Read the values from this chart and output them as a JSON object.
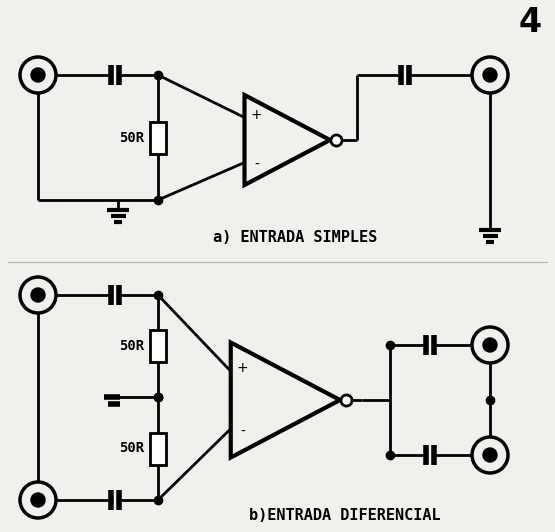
{
  "bg_color": "#f0f0ec",
  "line_color": "black",
  "lw": 2.0,
  "lw_thick": 4.0,
  "figure_number": "4",
  "label_a": "a) ENTRADA SIMPLES",
  "label_b": "b)ENTRADA DIFERENCIAL",
  "resistor_label": "50R",
  "fs_label": 11,
  "fs_number": 24,
  "fs_plusminus": 10,
  "fs_resistor": 10
}
